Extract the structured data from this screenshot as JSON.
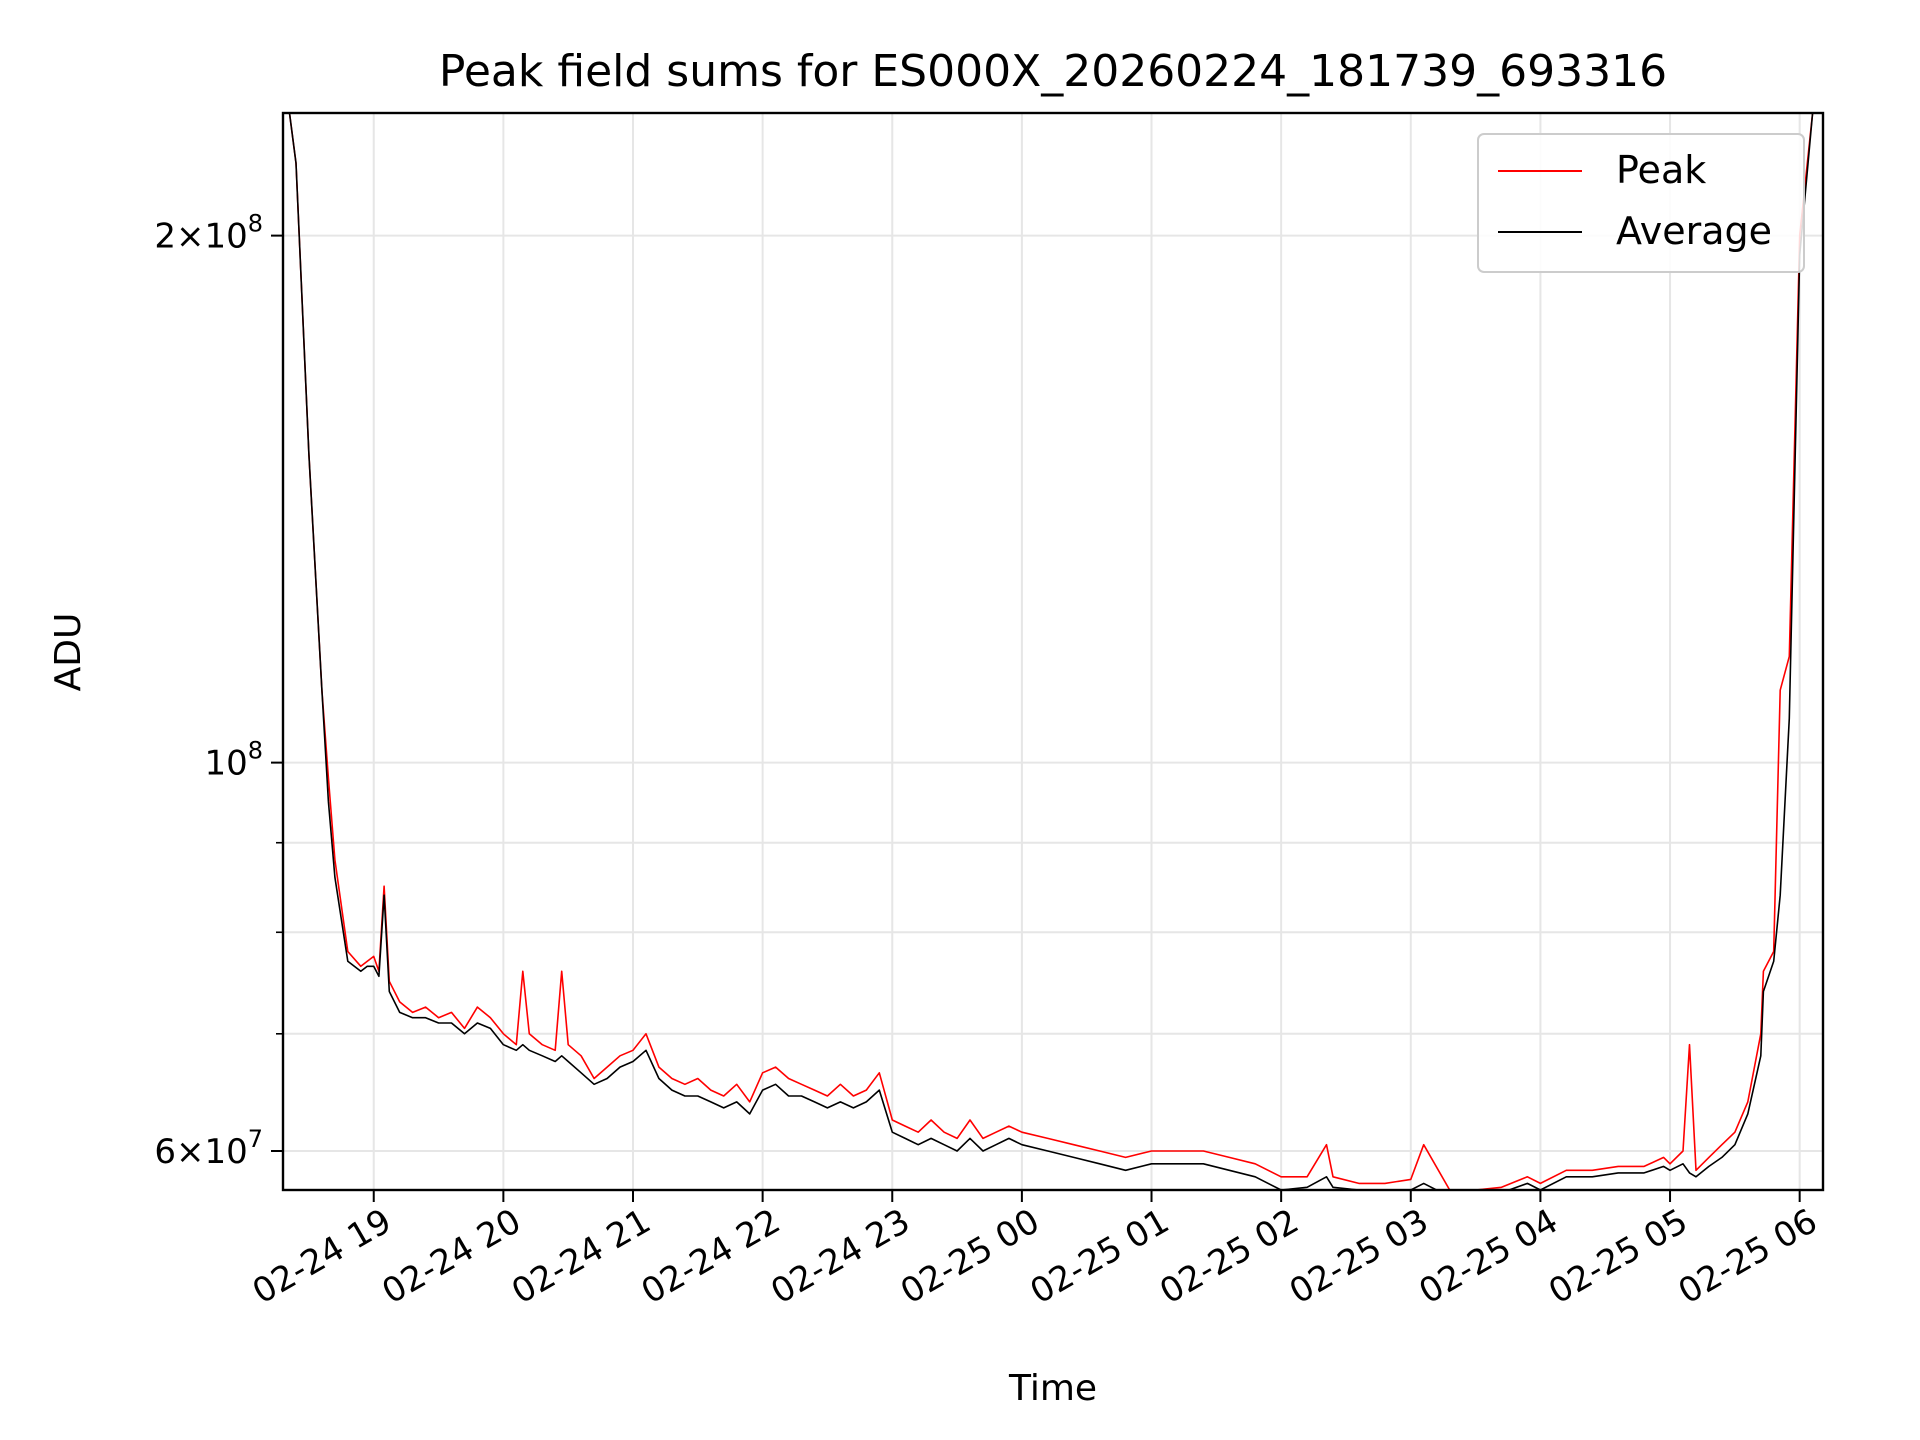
{
  "chart_data": {
    "type": "line",
    "title": "Peak field sums for ES000X_20260224_181739_693316",
    "xlabel": "Time",
    "ylabel": "ADU",
    "yscale": "log",
    "ylim": [
      57000000,
      235000000
    ],
    "xlim_hours": [
      18.3,
      30.18
    ],
    "grid": true,
    "legend_position": "top-right",
    "colors": {
      "peak": "#ff0000",
      "average": "#000000",
      "grid": "#e6e6e6"
    },
    "x_ticks": [
      {
        "hour": 19,
        "label": "02-24 19"
      },
      {
        "hour": 20,
        "label": "02-24 20"
      },
      {
        "hour": 21,
        "label": "02-24 21"
      },
      {
        "hour": 22,
        "label": "02-24 22"
      },
      {
        "hour": 23,
        "label": "02-24 23"
      },
      {
        "hour": 24,
        "label": "02-25 00"
      },
      {
        "hour": 25,
        "label": "02-25 01"
      },
      {
        "hour": 26,
        "label": "02-25 02"
      },
      {
        "hour": 27,
        "label": "02-25 03"
      },
      {
        "hour": 28,
        "label": "02-25 04"
      },
      {
        "hour": 29,
        "label": "02-25 05"
      },
      {
        "hour": 30,
        "label": "02-25 06"
      }
    ],
    "y_major_ticks": [
      {
        "value": 60000000,
        "mantissa": "6",
        "exponent": "7"
      },
      {
        "value": 100000000,
        "mantissa": "",
        "exponent": "8"
      },
      {
        "value": 200000000,
        "mantissa": "2",
        "exponent": "8"
      }
    ],
    "y_minor_ticks": [
      70000000,
      80000000,
      90000000
    ],
    "times_symbol": "×",
    "base_ten": "10",
    "series": [
      {
        "name": "Peak",
        "x": [
          18.35,
          18.4,
          18.5,
          18.6,
          18.65,
          18.7,
          18.8,
          18.9,
          18.95,
          19.0,
          19.04,
          19.08,
          19.12,
          19.2,
          19.3,
          19.4,
          19.5,
          19.6,
          19.7,
          19.8,
          19.9,
          20.0,
          20.1,
          20.15,
          20.2,
          20.3,
          20.4,
          20.45,
          20.5,
          20.6,
          20.7,
          20.8,
          20.9,
          21.0,
          21.1,
          21.2,
          21.3,
          21.4,
          21.5,
          21.6,
          21.7,
          21.8,
          21.9,
          22.0,
          22.1,
          22.2,
          22.3,
          22.4,
          22.5,
          22.6,
          22.7,
          22.8,
          22.9,
          23.0,
          23.1,
          23.2,
          23.3,
          23.4,
          23.5,
          23.6,
          23.7,
          23.8,
          23.9,
          24.0,
          24.2,
          24.4,
          24.6,
          24.8,
          25.0,
          25.2,
          25.4,
          25.6,
          25.8,
          26.0,
          26.2,
          26.35,
          26.4,
          26.6,
          26.8,
          27.0,
          27.1,
          27.3,
          27.5,
          27.7,
          27.9,
          28.0,
          28.2,
          28.4,
          28.6,
          28.8,
          28.95,
          29.0,
          29.1,
          29.15,
          29.2,
          29.3,
          29.4,
          29.5,
          29.6,
          29.7,
          29.72,
          29.8,
          29.85,
          29.92,
          30.0,
          30.1
        ],
        "y": [
          235000000,
          220000000,
          150000000,
          110000000,
          98000000,
          88000000,
          78000000,
          76500000,
          77000000,
          77500000,
          76000000,
          85000000,
          75000000,
          73000000,
          72000000,
          72500000,
          71500000,
          72000000,
          70500000,
          72500000,
          71500000,
          70000000,
          69000000,
          76000000,
          70000000,
          69000000,
          68500000,
          76000000,
          69000000,
          68000000,
          66000000,
          67000000,
          68000000,
          68500000,
          70000000,
          67000000,
          66000000,
          65500000,
          66000000,
          65000000,
          64500000,
          65500000,
          64000000,
          66500000,
          67000000,
          66000000,
          65500000,
          65000000,
          64500000,
          65500000,
          64500000,
          65000000,
          66500000,
          62500000,
          62000000,
          61500000,
          62500000,
          61500000,
          61000000,
          62500000,
          61000000,
          61500000,
          62000000,
          61500000,
          61000000,
          60500000,
          60000000,
          59500000,
          60000000,
          60000000,
          60000000,
          59500000,
          59000000,
          58000000,
          58000000,
          60500000,
          58000000,
          57500000,
          57500000,
          57800000,
          60500000,
          57000000,
          57000000,
          57200000,
          58000000,
          57500000,
          58500000,
          58500000,
          58800000,
          58800000,
          59500000,
          59000000,
          60000000,
          69000000,
          58500000,
          59500000,
          60500000,
          61500000,
          64000000,
          70000000,
          76000000,
          78000000,
          110000000,
          115000000,
          200000000,
          235000000
        ]
      },
      {
        "name": "Average",
        "x": [
          18.35,
          18.4,
          18.5,
          18.6,
          18.65,
          18.7,
          18.8,
          18.9,
          18.95,
          19.0,
          19.04,
          19.08,
          19.12,
          19.2,
          19.3,
          19.4,
          19.5,
          19.6,
          19.7,
          19.8,
          19.9,
          20.0,
          20.1,
          20.15,
          20.2,
          20.3,
          20.4,
          20.45,
          20.5,
          20.6,
          20.7,
          20.8,
          20.9,
          21.0,
          21.1,
          21.2,
          21.3,
          21.4,
          21.5,
          21.6,
          21.7,
          21.8,
          21.9,
          22.0,
          22.1,
          22.2,
          22.3,
          22.4,
          22.5,
          22.6,
          22.7,
          22.8,
          22.9,
          23.0,
          23.1,
          23.2,
          23.3,
          23.4,
          23.5,
          23.6,
          23.7,
          23.8,
          23.9,
          24.0,
          24.2,
          24.4,
          24.6,
          24.8,
          25.0,
          25.2,
          25.4,
          25.6,
          25.8,
          26.0,
          26.2,
          26.35,
          26.4,
          26.6,
          26.8,
          27.0,
          27.1,
          27.3,
          27.5,
          27.7,
          27.9,
          28.0,
          28.2,
          28.4,
          28.6,
          28.8,
          28.95,
          29.0,
          29.1,
          29.15,
          29.2,
          29.3,
          29.4,
          29.5,
          29.6,
          29.7,
          29.72,
          29.8,
          29.85,
          29.92,
          30.0,
          30.1
        ],
        "y": [
          235000000,
          220000000,
          150000000,
          110000000,
          95000000,
          86000000,
          77000000,
          76000000,
          76500000,
          76500000,
          75500000,
          84000000,
          74000000,
          72000000,
          71500000,
          71500000,
          71000000,
          71000000,
          70000000,
          71000000,
          70500000,
          69000000,
          68500000,
          69000000,
          68500000,
          68000000,
          67500000,
          68000000,
          67500000,
          66500000,
          65500000,
          66000000,
          67000000,
          67500000,
          68500000,
          66000000,
          65000000,
          64500000,
          64500000,
          64000000,
          63500000,
          64000000,
          63000000,
          65000000,
          65500000,
          64500000,
          64500000,
          64000000,
          63500000,
          64000000,
          63500000,
          64000000,
          65000000,
          61500000,
          61000000,
          60500000,
          61000000,
          60500000,
          60000000,
          61000000,
          60000000,
          60500000,
          61000000,
          60500000,
          60000000,
          59500000,
          59000000,
          58500000,
          59000000,
          59000000,
          59000000,
          58500000,
          58000000,
          57000000,
          57200000,
          58000000,
          57200000,
          57000000,
          56800000,
          57000000,
          57500000,
          56500000,
          56500000,
          56800000,
          57500000,
          57000000,
          58000000,
          58000000,
          58300000,
          58300000,
          58800000,
          58500000,
          59000000,
          58300000,
          58000000,
          58800000,
          59500000,
          60500000,
          63000000,
          68000000,
          74000000,
          77000000,
          84000000,
          106000000,
          195000000,
          235000000
        ]
      }
    ]
  }
}
